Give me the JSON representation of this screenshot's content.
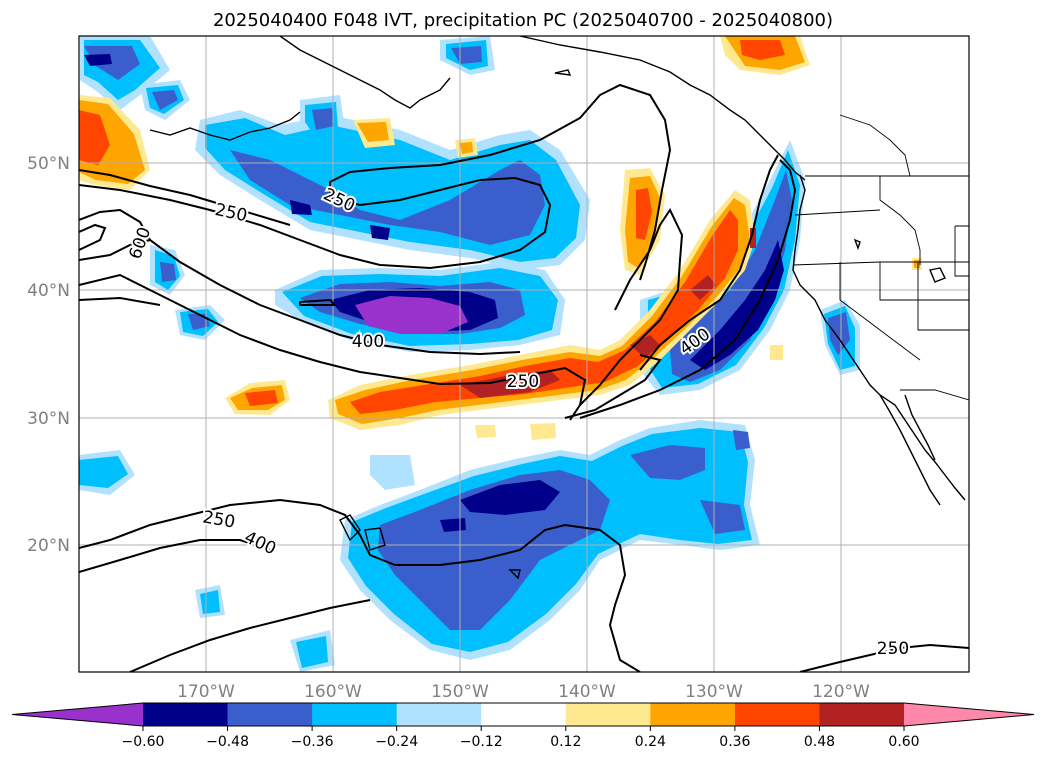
{
  "title": "2025040400 F048 IVT, precipitation PC (2025040700 - 2025040800)",
  "map": {
    "lat_labels": [
      "50°N",
      "40°N",
      "30°N",
      "20°N"
    ],
    "lon_labels": [
      "170°W",
      "160°W",
      "150°W",
      "140°W",
      "130°W",
      "120°W"
    ],
    "grid": true
  },
  "contour_labels": [
    "250",
    "250",
    "600",
    "400",
    "250",
    "400",
    "250",
    "400",
    "250"
  ],
  "colorbar": {
    "levels": [
      "−0.60",
      "−0.48",
      "−0.36",
      "−0.24",
      "−0.12",
      "0.12",
      "0.24",
      "0.36",
      "0.48",
      "0.60"
    ],
    "colors": [
      "#9932cc",
      "#00008b",
      "#3a5fcd",
      "#00bfff",
      "#b0e2ff",
      "#ffffff",
      "#ffe990",
      "#ffa500",
      "#ff4500",
      "#b22222",
      "#ff88aa"
    ],
    "extend": "both"
  }
}
